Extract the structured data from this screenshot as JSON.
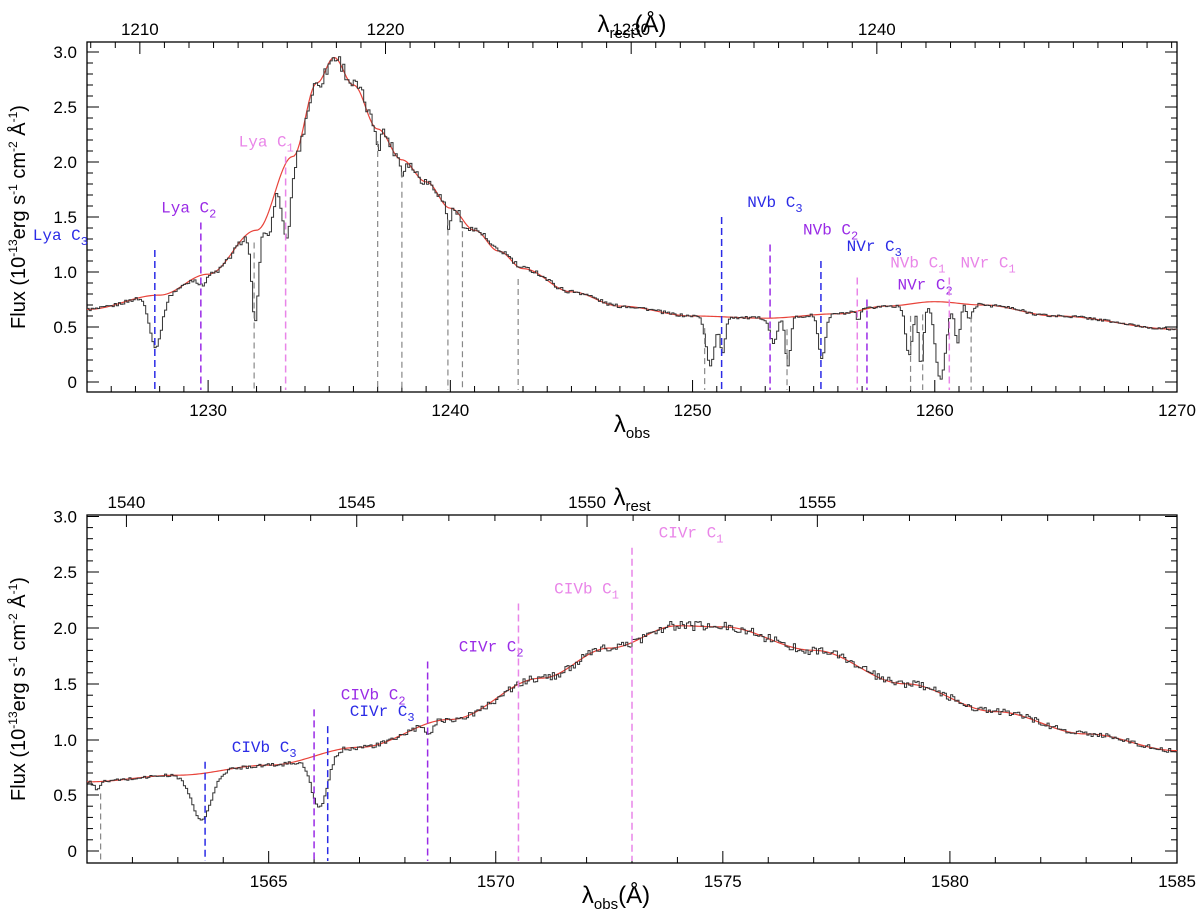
{
  "chart_data": [
    {
      "type": "line",
      "id": "top",
      "xlabel": "λ",
      "xlabel_sub": "obs",
      "top_axis_title": "λ",
      "top_axis_title_sub": "rest",
      "top_axis_title_unit": "(Å)",
      "xlim": [
        1225,
        1270
      ],
      "ylim": [
        -0.1,
        3.2
      ],
      "xticks": [
        1230,
        1240,
        1250,
        1260,
        1270
      ],
      "top_ticks": [
        1210,
        1220,
        1230,
        1240
      ],
      "rest_factor": 1.0142,
      "yticks": [
        "0",
        "0.5",
        "1.0",
        "1.5",
        "2.0",
        "2.5",
        "3.0"
      ],
      "ylabel_parts": [
        "Flux (10",
        "-13",
        "erg s",
        "-1",
        " cm",
        "-2",
        " Å",
        "-1",
        ")"
      ],
      "continuum": {
        "color": "#e8433a",
        "profile": [
          [
            1225,
            0.66
          ],
          [
            1228,
            0.79
          ],
          [
            1230,
            0.98
          ],
          [
            1232,
            1.38
          ],
          [
            1233.5,
            2.05
          ],
          [
            1234.5,
            2.72
          ],
          [
            1235.2,
            2.95
          ],
          [
            1236,
            2.7
          ],
          [
            1237,
            2.3
          ],
          [
            1238,
            2.02
          ],
          [
            1239,
            1.82
          ],
          [
            1240,
            1.58
          ],
          [
            1241,
            1.38
          ],
          [
            1242,
            1.19
          ],
          [
            1243,
            1.03
          ],
          [
            1245,
            0.82
          ],
          [
            1247,
            0.69
          ],
          [
            1250,
            0.6
          ],
          [
            1253,
            0.58
          ],
          [
            1256,
            0.62
          ],
          [
            1258,
            0.69
          ],
          [
            1260,
            0.73
          ],
          [
            1262,
            0.7
          ],
          [
            1265,
            0.6
          ],
          [
            1270,
            0.48
          ]
        ]
      },
      "absorptions": [
        {
          "center": 1227.8,
          "depth": 0.6,
          "width": 0.35
        },
        {
          "center": 1229.7,
          "depth": 0.1,
          "width": 0.2
        },
        {
          "center": 1231.9,
          "depth": 0.6,
          "width": 0.2
        },
        {
          "center": 1233.2,
          "depth": 0.35,
          "width": 0.25
        },
        {
          "center": 1232.5,
          "depth": 0.15,
          "width": 0.15
        },
        {
          "center": 1237.0,
          "depth": 0.07,
          "width": 0.1
        },
        {
          "center": 1238.0,
          "depth": 0.07,
          "width": 0.1
        },
        {
          "center": 1239.9,
          "depth": 0.12,
          "width": 0.1
        },
        {
          "center": 1240.5,
          "depth": 0.07,
          "width": 0.1
        },
        {
          "center": 1250.7,
          "depth": 0.75,
          "width": 0.25
        },
        {
          "center": 1251.2,
          "depth": 0.55,
          "width": 0.15
        },
        {
          "center": 1253.3,
          "depth": 0.4,
          "width": 0.2
        },
        {
          "center": 1253.9,
          "depth": 0.75,
          "width": 0.15
        },
        {
          "center": 1255.3,
          "depth": 0.65,
          "width": 0.2
        },
        {
          "center": 1256.8,
          "depth": 0.15,
          "width": 0.1
        },
        {
          "center": 1258.9,
          "depth": 0.65,
          "width": 0.2
        },
        {
          "center": 1259.4,
          "depth": 0.8,
          "width": 0.15
        },
        {
          "center": 1260.2,
          "depth": 0.97,
          "width": 0.3
        },
        {
          "center": 1260.9,
          "depth": 0.5,
          "width": 0.15
        },
        {
          "center": 1261.4,
          "depth": 0.2,
          "width": 0.15
        }
      ],
      "gray_markers": [
        1231.9,
        1237.0,
        1238.0,
        1239.9,
        1240.5,
        1242.8,
        1250.5,
        1253.9,
        1259.0,
        1259.5,
        1261.5
      ],
      "labels": [
        {
          "text": "Lya C",
          "sub": "3",
          "x": 1227.8,
          "y": 1.2,
          "color": "#2b2be6",
          "label_x": 1223.9
        },
        {
          "text": "Lya C",
          "sub": "2",
          "x": 1229.7,
          "y": 1.45,
          "color": "#9a2be6",
          "label_x": 1229.2
        },
        {
          "text": "Lya C",
          "sub": "1",
          "x": 1233.2,
          "y": 2.05,
          "color": "#e985e8",
          "label_x": 1232.4
        },
        {
          "text": "NVb C",
          "sub": "3",
          "x": 1251.2,
          "y": 1.5,
          "color": "#2b2be6",
          "label_x": 1253.4
        },
        {
          "text": "NVb C",
          "sub": "2",
          "x": 1253.2,
          "y": 1.25,
          "color": "#9a2be6",
          "label_x": 1255.7
        },
        {
          "text": "NVr C",
          "sub": "3",
          "x": 1255.3,
          "y": 1.1,
          "color": "#2b2be6",
          "label_x": 1257.5
        },
        {
          "text": "NVb C",
          "sub": "1",
          "x": 1256.8,
          "y": 0.95,
          "color": "#e985e8",
          "label_x": 1259.3
        },
        {
          "text": "NVr C",
          "sub": "2",
          "x": 1257.2,
          "y": 0.75,
          "color": "#9a2be6",
          "label_x": 1259.6
        },
        {
          "text": "NVr C",
          "sub": "1",
          "x": 1260.6,
          "y": 0.95,
          "color": "#e985e8",
          "label_x": 1262.2
        }
      ]
    },
    {
      "type": "line",
      "id": "bottom",
      "xlabel": "λ",
      "xlabel_sub": "obs",
      "xlabel_unit": "(Å)",
      "top_axis_title": "λ",
      "top_axis_title_sub": "rest",
      "xlim": [
        1561,
        1585
      ],
      "ylim": [
        -0.1,
        3.1
      ],
      "xticks": [
        1565,
        1570,
        1575,
        1580,
        1585
      ],
      "top_ticks": [
        1540,
        1545,
        1550,
        1555
      ],
      "rest_factor": 1.0142,
      "yticks": [
        "0",
        "0.5",
        "1.0",
        "1.5",
        "2.0",
        "2.5",
        "3.0"
      ],
      "ylabel_parts": [
        "Flux (10",
        "-13",
        "erg s",
        "-1",
        " cm",
        "-2",
        " Å",
        "-1",
        ")"
      ],
      "continuum": {
        "color": "#e8433a",
        "profile": [
          [
            1561,
            0.62
          ],
          [
            1563,
            0.68
          ],
          [
            1565,
            0.77
          ],
          [
            1567,
            0.93
          ],
          [
            1569,
            1.18
          ],
          [
            1571,
            1.55
          ],
          [
            1572.5,
            1.82
          ],
          [
            1574,
            2.02
          ],
          [
            1575,
            2.01
          ],
          [
            1577,
            1.8
          ],
          [
            1579,
            1.5
          ],
          [
            1581,
            1.25
          ],
          [
            1583,
            1.05
          ],
          [
            1585,
            0.9
          ]
        ]
      },
      "absorptions": [
        {
          "center": 1561.2,
          "depth": 0.1,
          "width": 0.1
        },
        {
          "center": 1563.5,
          "depth": 0.6,
          "width": 0.3
        },
        {
          "center": 1566.1,
          "depth": 0.55,
          "width": 0.25
        },
        {
          "center": 1568.5,
          "depth": 0.1,
          "width": 0.1
        }
      ],
      "gray_markers": [
        1561.3
      ],
      "labels": [
        {
          "text": "CIVb C",
          "sub": "3",
          "x": 1563.6,
          "y": 0.8,
          "color": "#2b2be6",
          "label_x": 1564.9
        },
        {
          "text": "CIVb C",
          "sub": "2",
          "x": 1566.0,
          "y": 1.27,
          "color": "#9a2be6",
          "label_x": 1567.3
        },
        {
          "text": "CIVr C",
          "sub": "3",
          "x": 1566.3,
          "y": 1.12,
          "color": "#2b2be6",
          "label_x": 1567.5
        },
        {
          "text": "CIVr C",
          "sub": "2",
          "x": 1568.5,
          "y": 1.7,
          "color": "#9a2be6",
          "label_x": 1569.9
        },
        {
          "text": "CIVb C",
          "sub": "1",
          "x": 1570.5,
          "y": 2.22,
          "color": "#e985e8",
          "label_x": 1572.0
        },
        {
          "text": "CIVr C",
          "sub": "1",
          "x": 1573.0,
          "y": 2.72,
          "color": "#e985e8",
          "label_x": 1574.3
        }
      ]
    }
  ]
}
